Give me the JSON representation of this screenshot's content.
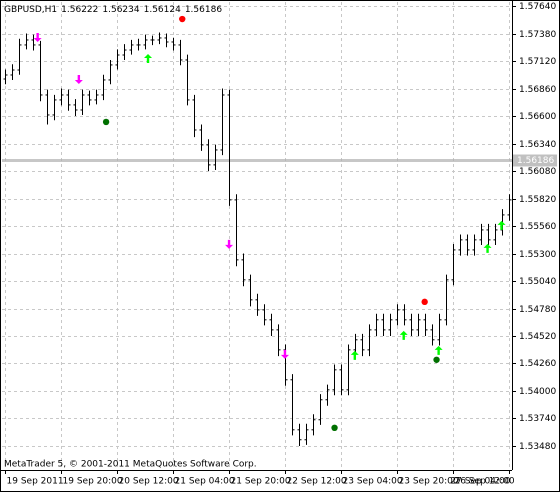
{
  "chart_data": {
    "type": "ohlc",
    "symbol": "GBPUSD,H1",
    "quote": [
      1.56222,
      1.56234,
      1.56124,
      1.56186
    ],
    "last_price": 1.56186,
    "footer": "MetaTrader 5, © 2001-2011 MetaQuotes Software Corp.",
    "color": "#000000",
    "grid": true,
    "xlim": [
      -0.5,
      72.5
    ],
    "xticks": [
      {
        "value": 0,
        "label": "19 Sep 2011"
      },
      {
        "value": 8,
        "label": "19 Sep 20:00"
      },
      {
        "value": 16,
        "label": "20 Sep 12:00"
      },
      {
        "value": 24,
        "label": "21 Sep 04:00"
      },
      {
        "value": 32,
        "label": "21 Sep 20:00"
      },
      {
        "value": 40,
        "label": "22 Sep 12:00"
      },
      {
        "value": 48,
        "label": "23 Sep 04:00"
      },
      {
        "value": 56,
        "label": "23 Sep 20:00"
      },
      {
        "value": 64,
        "label": "26 Sep 12:00"
      },
      {
        "value": 72,
        "label": "27 Sep 04:00"
      }
    ],
    "ylim": [
      1.53253,
      1.57678
    ],
    "yticks": [
      {
        "value": 1.5764,
        "label": "1.57640"
      },
      {
        "value": 1.5738,
        "label": "1.57380"
      },
      {
        "value": 1.5712,
        "label": "1.57120"
      },
      {
        "value": 1.5686,
        "label": "1.56860"
      },
      {
        "value": 1.566,
        "label": "1.56600"
      },
      {
        "value": 1.5634,
        "label": "1.56340"
      },
      {
        "value": 1.5608,
        "label": "1.56080"
      },
      {
        "value": 1.5582,
        "label": "1.55820"
      },
      {
        "value": 1.5556,
        "label": "1.55560"
      },
      {
        "value": 1.553,
        "label": "1.55300"
      },
      {
        "value": 1.5504,
        "label": "1.55040"
      },
      {
        "value": 1.5478,
        "label": "1.54780"
      },
      {
        "value": 1.5452,
        "label": "1.54520"
      },
      {
        "value": 1.5426,
        "label": "1.54260"
      },
      {
        "value": 1.54,
        "label": "1.54000"
      },
      {
        "value": 1.5374,
        "label": "1.53740"
      },
      {
        "value": 1.5348,
        "label": "1.53480"
      }
    ],
    "open": [
      1.5695,
      1.56988,
      1.57035,
      1.57272,
      1.57319,
      1.57272,
      1.56799,
      1.5661,
      1.56752,
      1.56799,
      1.56705,
      1.56657,
      1.56799,
      1.56752,
      1.56799,
      1.56941,
      1.57083,
      1.57177,
      1.57224,
      1.57272,
      1.57272,
      1.57319,
      1.57319,
      1.57338,
      1.573,
      1.57272,
      1.5713,
      1.56752,
      1.56468,
      1.56327,
      1.56138,
      1.56279,
      1.56799,
      1.55807,
      1.5524,
      1.55051,
      1.54862,
      1.54767,
      1.54673,
      1.54578,
      1.54389,
      1.54106,
      1.53633,
      1.53539,
      1.53633,
      1.53728,
      1.53917,
      1.54011,
      1.542,
      1.54011,
      1.54389,
      1.54484,
      1.54389,
      1.54578,
      1.54673,
      1.54578,
      1.54673,
      1.54767,
      1.54673,
      1.54578,
      1.54673,
      1.54578,
      1.54484,
      1.54673,
      1.55051,
      1.55334,
      1.55429,
      1.55334,
      1.55429,
      1.55523,
      1.55429,
      1.55523,
      1.55665
    ],
    "high": [
      1.5704,
      1.5709,
      1.5733,
      1.5738,
      1.5737,
      1.5731,
      1.5685,
      1.568,
      1.5686,
      1.5685,
      1.5676,
      1.5685,
      1.5684,
      1.5685,
      1.5699,
      1.5713,
      1.5723,
      1.5728,
      1.5732,
      1.5733,
      1.5737,
      1.5736,
      1.5739,
      1.5738,
      1.5734,
      1.5732,
      1.5718,
      1.568,
      1.5652,
      1.5638,
      1.5633,
      1.5686,
      1.5685,
      1.5586,
      1.553,
      1.551,
      1.5492,
      1.5482,
      1.5473,
      1.5463,
      1.5444,
      1.5416,
      1.5369,
      1.5369,
      1.5378,
      1.5397,
      1.5406,
      1.5425,
      1.5425,
      1.5444,
      1.5454,
      1.5454,
      1.5463,
      1.5473,
      1.5473,
      1.5473,
      1.5482,
      1.5482,
      1.5473,
      1.5473,
      1.5473,
      1.5463,
      1.5473,
      1.551,
      1.5539,
      1.5548,
      1.5548,
      1.5548,
      1.5558,
      1.5558,
      1.5558,
      1.5572,
      1.5586
    ],
    "low": [
      1.569,
      1.5694,
      1.5699,
      1.5723,
      1.5722,
      1.5674,
      1.5652,
      1.5656,
      1.567,
      1.5665,
      1.566,
      1.5661,
      1.567,
      1.5671,
      1.5675,
      1.569,
      1.5704,
      1.5713,
      1.5718,
      1.5722,
      1.5723,
      1.5727,
      1.5728,
      1.5725,
      1.5722,
      1.5708,
      1.567,
      1.564,
      1.5627,
      1.5608,
      1.5609,
      1.5623,
      1.5575,
      1.5518,
      1.5499,
      1.548,
      1.5471,
      1.5462,
      1.5452,
      1.5433,
      1.5405,
      1.5358,
      1.5348,
      1.5349,
      1.5358,
      1.5368,
      1.5386,
      1.5396,
      1.5396,
      1.5396,
      1.5433,
      1.5433,
      1.5433,
      1.5452,
      1.5452,
      1.5452,
      1.5462,
      1.5462,
      1.5452,
      1.5452,
      1.5452,
      1.5443,
      1.5443,
      1.5462,
      1.55,
      1.5528,
      1.5528,
      1.5528,
      1.5538,
      1.5538,
      1.5538,
      1.5547,
      1.5561
    ],
    "close": [
      1.56988,
      1.57035,
      1.57272,
      1.57319,
      1.57272,
      1.56799,
      1.5661,
      1.56752,
      1.56799,
      1.56705,
      1.56657,
      1.56799,
      1.56752,
      1.56799,
      1.56941,
      1.57083,
      1.57177,
      1.57224,
      1.57272,
      1.57272,
      1.57319,
      1.57319,
      1.57338,
      1.573,
      1.57272,
      1.5713,
      1.56752,
      1.56468,
      1.56327,
      1.56138,
      1.56279,
      1.56799,
      1.55807,
      1.5524,
      1.55051,
      1.54862,
      1.54767,
      1.54673,
      1.54578,
      1.54389,
      1.54106,
      1.53633,
      1.53539,
      1.53633,
      1.53728,
      1.53917,
      1.54011,
      1.542,
      1.54011,
      1.54389,
      1.54484,
      1.54389,
      1.54578,
      1.54673,
      1.54578,
      1.54673,
      1.54767,
      1.54673,
      1.54578,
      1.54673,
      1.54578,
      1.54484,
      1.54673,
      1.55051,
      1.55334,
      1.55429,
      1.55334,
      1.55429,
      1.55523,
      1.55429,
      1.55523,
      1.55665,
      1.55807
    ],
    "markers": [
      {
        "kind": "sell",
        "color": "#ff00ff",
        "x": [
          4.6,
          10.5,
          32,
          40
        ],
        "values": [
          1.57338,
          1.56941,
          1.55382,
          1.54342
        ]
      },
      {
        "kind": "buy",
        "color": "#00ff00",
        "x": [
          20.4,
          50,
          57,
          62,
          69,
          71
        ],
        "values": [
          1.57149,
          1.54342,
          1.54531,
          1.54389,
          1.55353,
          1.55571
        ]
      },
      {
        "kind": "dot",
        "color": "#ff0000",
        "x": [
          25.3,
          60
        ],
        "values": [
          1.57517,
          1.54843
        ]
      },
      {
        "kind": "dot",
        "color": "#007000",
        "x": [
          14.4,
          47.1,
          61.7
        ],
        "values": [
          1.56544,
          1.53652,
          1.54295
        ]
      }
    ]
  }
}
